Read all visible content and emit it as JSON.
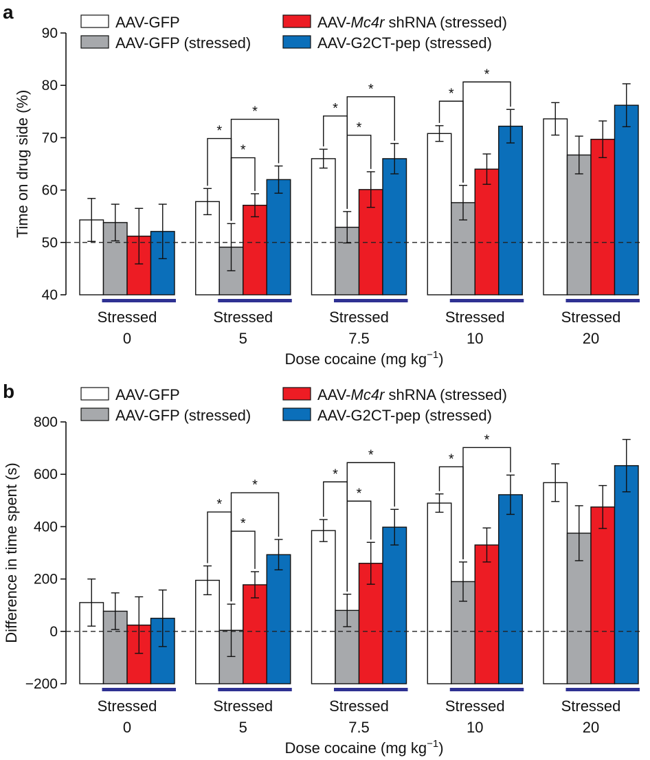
{
  "colors": {
    "AAV-GFP": "#ffffff",
    "AAV-GFP (stressed)": "#a7a9ac",
    "AAV-Mc4r shRNA (stressed)": "#ed1c24",
    "AAV-G2CT-pep (stressed)": "#0b6fba",
    "stressed_bar": "#2e3192",
    "reference_line": "#222222"
  },
  "legend": [
    {
      "text": "AAV-GFP"
    },
    {
      "text": "AAV-GFP (stressed)"
    },
    {
      "pre": "AAV-",
      "italic": "Mc4r",
      "post": " shRNA (stressed)"
    },
    {
      "text": "AAV-G2CT-pep (stressed)"
    }
  ],
  "stressed_label": "Stressed",
  "significance_symbol": "*",
  "chart_data": [
    {
      "panel": "a",
      "type": "bar",
      "ylabel": "Time on drug side (%)",
      "xlabel": {
        "main": "Dose cocaine (mg kg",
        "sup": "−1",
        "close": ")"
      },
      "ylim": [
        40,
        90
      ],
      "yticks": [
        "40",
        "50",
        "60",
        "70",
        "80",
        "90"
      ],
      "reference_line": 50,
      "categories": [
        "0",
        "5",
        "7.5",
        "10",
        "20"
      ],
      "series": [
        {
          "name": "AAV-GFP",
          "values": [
            54.3,
            57.8,
            66.0,
            70.8,
            73.6
          ],
          "errors": [
            4.1,
            2.5,
            1.8,
            1.5,
            3.1
          ]
        },
        {
          "name": "AAV-GFP (stressed)",
          "values": [
            53.8,
            49.1,
            52.9,
            57.6,
            66.7
          ],
          "errors": [
            3.5,
            4.5,
            3.0,
            3.3,
            3.6
          ]
        },
        {
          "name": "AAV-Mc4r shRNA (stressed)",
          "values": [
            51.2,
            57.1,
            60.1,
            64.0,
            69.7
          ],
          "errors": [
            5.3,
            2.2,
            3.4,
            2.9,
            3.5
          ]
        },
        {
          "name": "AAV-G2CT-pep (stressed)",
          "values": [
            52.1,
            62.0,
            66.0,
            72.2,
            76.2
          ],
          "errors": [
            5.2,
            2.6,
            2.9,
            3.2,
            4.1
          ]
        }
      ],
      "significance": [
        {
          "group": 1,
          "from": 0,
          "to": 1,
          "level": 1,
          "label": "*"
        },
        {
          "group": 1,
          "from": 1,
          "to": 2,
          "level": 0,
          "label": "*"
        },
        {
          "group": 1,
          "from": 1,
          "to": 3,
          "level": 2,
          "label": "*"
        },
        {
          "group": 2,
          "from": 0,
          "to": 1,
          "level": 1,
          "label": "*"
        },
        {
          "group": 2,
          "from": 1,
          "to": 2,
          "level": 0,
          "label": "*"
        },
        {
          "group": 2,
          "from": 1,
          "to": 3,
          "level": 2,
          "label": "*"
        },
        {
          "group": 3,
          "from": 0,
          "to": 1,
          "level": 0,
          "label": "*"
        },
        {
          "group": 3,
          "from": 1,
          "to": 3,
          "level": 1,
          "label": "*"
        }
      ]
    },
    {
      "panel": "b",
      "type": "bar",
      "ylabel": "Difference in time spent (s)",
      "xlabel": {
        "main": "Dose cocaine (mg kg",
        "sup": "−1",
        "close": ")"
      },
      "ylim": [
        -200,
        800
      ],
      "yticks": [
        "−200",
        "0",
        "200",
        "400",
        "600",
        "800"
      ],
      "reference_line": 0,
      "categories": [
        "0",
        "5",
        "7.5",
        "10",
        "20"
      ],
      "series": [
        {
          "name": "AAV-GFP",
          "values": [
            110,
            195,
            385,
            490,
            568
          ],
          "errors": [
            90,
            55,
            42,
            35,
            72
          ]
        },
        {
          "name": "AAV-GFP (stressed)",
          "values": [
            77,
            4,
            80,
            190,
            375
          ],
          "errors": [
            70,
            100,
            62,
            75,
            105
          ]
        },
        {
          "name": "AAV-Mc4r shRNA (stressed)",
          "values": [
            24,
            178,
            260,
            330,
            475
          ],
          "errors": [
            108,
            50,
            80,
            65,
            82
          ]
        },
        {
          "name": "AAV-G2CT-pep (stressed)",
          "values": [
            50,
            293,
            398,
            522,
            633
          ],
          "errors": [
            108,
            58,
            68,
            75,
            100
          ]
        }
      ],
      "significance": [
        {
          "group": 1,
          "from": 0,
          "to": 1,
          "level": 1,
          "label": "*"
        },
        {
          "group": 1,
          "from": 1,
          "to": 2,
          "level": 0,
          "label": "*"
        },
        {
          "group": 1,
          "from": 1,
          "to": 3,
          "level": 2,
          "label": "*"
        },
        {
          "group": 2,
          "from": 0,
          "to": 1,
          "level": 1,
          "label": "*"
        },
        {
          "group": 2,
          "from": 1,
          "to": 2,
          "level": 0,
          "label": "*"
        },
        {
          "group": 2,
          "from": 1,
          "to": 3,
          "level": 2,
          "label": "*"
        },
        {
          "group": 3,
          "from": 0,
          "to": 1,
          "level": 0,
          "label": "*"
        },
        {
          "group": 3,
          "from": 1,
          "to": 3,
          "level": 1,
          "label": "*"
        }
      ]
    }
  ]
}
